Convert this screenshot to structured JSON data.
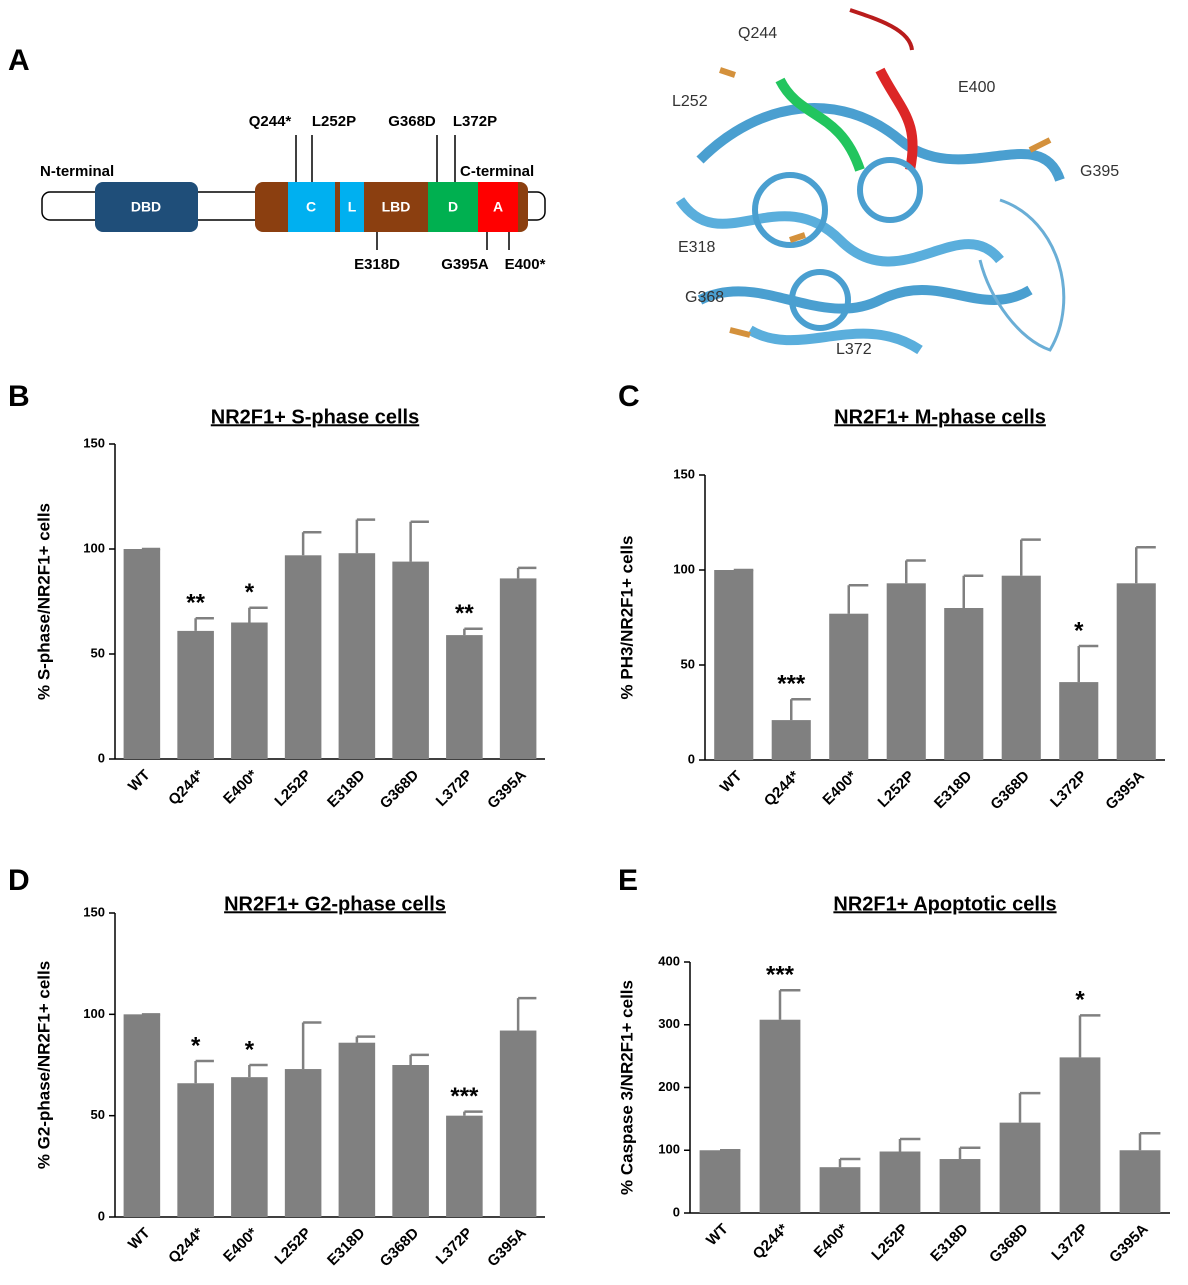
{
  "figure": {
    "panel_a": {
      "letter": "A",
      "n_terminal": "N-terminal",
      "c_terminal": "C-terminal",
      "domains": [
        "DBD",
        "C",
        "L",
        "LBD",
        "D",
        "A"
      ],
      "mutations_above": [
        "Q244*",
        "L252P",
        "G368D",
        "L372P"
      ],
      "mutations_below": [
        "E318D",
        "G395A",
        "E400*"
      ],
      "structure_labels": [
        "Q244",
        "L252",
        "E400",
        "G395",
        "E318",
        "G368",
        "L372"
      ]
    }
  },
  "chart_data": [
    {
      "type": "bar",
      "panel": "B",
      "title": "NR2F1+ S-phase cells",
      "ylabel": "% S-phase/NR2F1+ cells",
      "categories": [
        "WT",
        "Q244*",
        "E400*",
        "L252P",
        "E318D",
        "G368D",
        "L372P",
        "G395A"
      ],
      "values": [
        100,
        61,
        65,
        97,
        98,
        94,
        59,
        86
      ],
      "errors": [
        0,
        6,
        7,
        11,
        16,
        19,
        3,
        5
      ],
      "annotations": [
        null,
        "**",
        "*",
        null,
        null,
        null,
        "**",
        null
      ],
      "color": "#808080",
      "ylim": [
        0,
        150
      ],
      "yticks": [
        0,
        50,
        100,
        150
      ]
    },
    {
      "type": "bar",
      "panel": "C",
      "title": "NR2F1+ M-phase cells",
      "ylabel": "% PH3/NR2F1+ cells",
      "categories": [
        "WT",
        "Q244*",
        "E400*",
        "L252P",
        "E318D",
        "G368D",
        "L372P",
        "G395A"
      ],
      "values": [
        100,
        21,
        77,
        93,
        80,
        97,
        41,
        93
      ],
      "errors": [
        0,
        11,
        15,
        12,
        17,
        19,
        19,
        19
      ],
      "annotations": [
        null,
        "***",
        null,
        null,
        null,
        null,
        "*",
        null
      ],
      "color": "#808080",
      "ylim": [
        0,
        150
      ],
      "yticks": [
        0,
        50,
        100,
        150
      ]
    },
    {
      "type": "bar",
      "panel": "D",
      "title": "NR2F1+ G2-phase cells",
      "ylabel": "% G2-phase/NR2F1+ cells",
      "categories": [
        "WT",
        "Q244*",
        "E400*",
        "L252P",
        "E318D",
        "G368D",
        "L372P",
        "G395A"
      ],
      "values": [
        100,
        66,
        69,
        73,
        86,
        75,
        50,
        92
      ],
      "errors": [
        0,
        11,
        6,
        23,
        3,
        5,
        2,
        16
      ],
      "annotations": [
        null,
        "*",
        "*",
        null,
        null,
        null,
        "***",
        null
      ],
      "color": "#808080",
      "ylim": [
        0,
        150
      ],
      "yticks": [
        0,
        50,
        100,
        150
      ]
    },
    {
      "type": "bar",
      "panel": "E",
      "title": "NR2F1+ Apoptotic cells",
      "ylabel": "% Caspase 3/NR2F1+ cells",
      "categories": [
        "WT",
        "Q244*",
        "E400*",
        "L252P",
        "E318D",
        "G368D",
        "L372P",
        "G395A"
      ],
      "values": [
        100,
        308,
        73,
        98,
        86,
        144,
        248,
        100
      ],
      "errors": [
        0,
        47,
        13,
        20,
        18,
        47,
        67,
        27
      ],
      "annotations": [
        null,
        "***",
        null,
        null,
        null,
        null,
        "*",
        null
      ],
      "color": "#808080",
      "ylim": [
        0,
        400
      ],
      "yticks": [
        0,
        100,
        200,
        300,
        400
      ]
    }
  ]
}
